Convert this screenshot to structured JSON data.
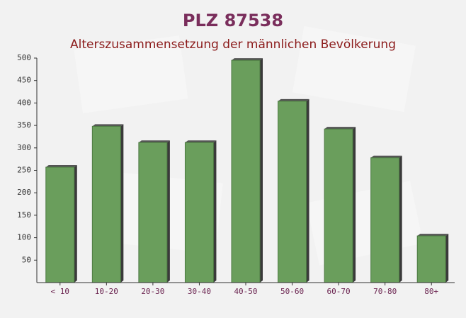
{
  "chart_data": {
    "type": "bar",
    "title": "PLZ 87538",
    "subtitle": "Alterszusammensetzung der männlichen Bevölkerung",
    "categories": [
      "< 10",
      "10-20",
      "20-30",
      "30-40",
      "40-50",
      "50-60",
      "60-70",
      "70-80",
      "80+"
    ],
    "values": [
      257,
      348,
      312,
      312,
      495,
      404,
      342,
      278,
      104
    ],
    "color": "#6a9e5c",
    "ylim": [
      0,
      500
    ],
    "yticks": [
      50,
      100,
      150,
      200,
      250,
      300,
      350,
      400,
      450,
      500
    ],
    "grid": false
  }
}
